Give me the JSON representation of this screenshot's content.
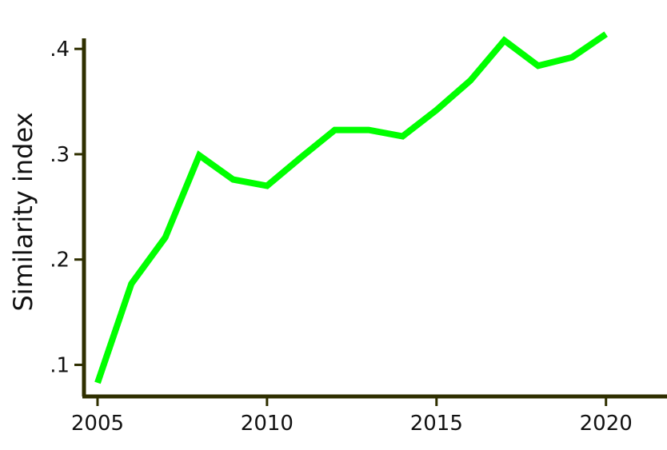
{
  "chart_data": {
    "type": "line",
    "title": "",
    "xlabel": "",
    "ylabel": "Similarity index",
    "xlim": [
      2004.6,
      2021.8
    ],
    "ylim": [
      0.07,
      0.41
    ],
    "xticks": [
      2005,
      2010,
      2015,
      2020
    ],
    "xtick_labels": [
      "2005",
      "2010",
      "2015",
      "2020"
    ],
    "yticks": [
      0.1,
      0.2,
      0.3,
      0.4
    ],
    "ytick_labels": [
      ".1",
      ".2",
      ".3",
      ".4"
    ],
    "grid": false,
    "legend": "none",
    "series": [
      {
        "color": "#00ff00",
        "x": [
          2005,
          2006,
          2007,
          2008,
          2009,
          2010,
          2011,
          2012,
          2013,
          2014,
          2015,
          2016,
          2017,
          2018,
          2019,
          2020
        ],
        "y": [
          0.083,
          0.177,
          0.221,
          0.299,
          0.276,
          0.27,
          0.297,
          0.323,
          0.323,
          0.317,
          0.342,
          0.37,
          0.408,
          0.384,
          0.392,
          0.414
        ]
      }
    ],
    "axis_color": "#2f2f00"
  }
}
